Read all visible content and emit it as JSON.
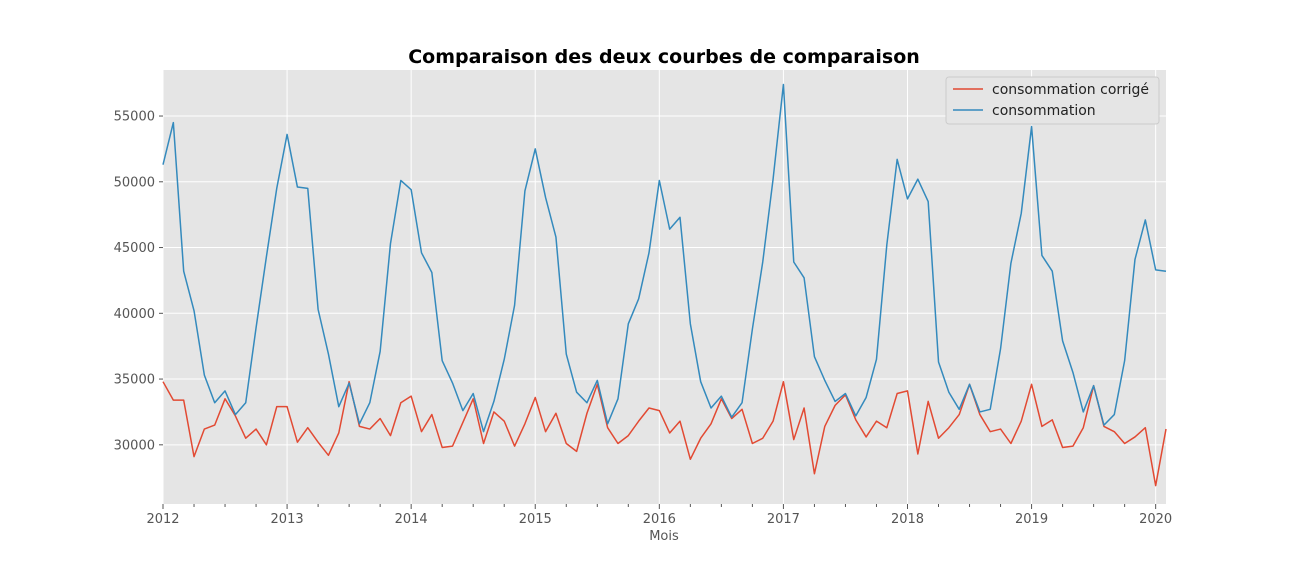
{
  "chart_data": {
    "type": "line",
    "title": "Comparaison des deux courbes de comparaison",
    "xlabel": "Mois",
    "ylabel": "",
    "x_start": "2012-01",
    "x_end": "2020-02",
    "xlim": [
      "2012-01",
      "2020-02"
    ],
    "ylim": [
      25500,
      58500
    ],
    "xticks": [
      "2012",
      "2013",
      "2014",
      "2015",
      "2016",
      "2017",
      "2018",
      "2019",
      "2020"
    ],
    "yticks": [
      30000,
      35000,
      40000,
      45000,
      50000,
      55000
    ],
    "grid": true,
    "legend_position": "top-right",
    "series": [
      {
        "name": "consommation corrigé",
        "color": "#e24a33",
        "values": [
          34800,
          33400,
          33400,
          29100,
          31200,
          31500,
          33500,
          32200,
          30500,
          31200,
          30000,
          32900,
          32900,
          30200,
          31300,
          30200,
          29200,
          30900,
          34800,
          31400,
          31200,
          32000,
          30700,
          33200,
          33700,
          31000,
          32300,
          29800,
          29900,
          31700,
          33500,
          30100,
          32500,
          31800,
          29900,
          31600,
          33600,
          31000,
          32400,
          30100,
          29500,
          32400,
          34600,
          31300,
          30100,
          30700,
          31800,
          32800,
          32600,
          30900,
          31800,
          28900,
          30500,
          31600,
          33500,
          32000,
          32700,
          30100,
          30500,
          31800,
          34800,
          30400,
          32800,
          27800,
          31400,
          33000,
          33800,
          31900,
          30600,
          31800,
          31300,
          33900,
          34100,
          29300,
          33300,
          30500,
          31300,
          32300,
          34600,
          32300,
          31000,
          31200,
          30100,
          31800,
          34600,
          31400,
          31900,
          29800,
          29900,
          31300,
          34500,
          31400,
          31000,
          30100,
          30600,
          31300,
          26900,
          31200
        ]
      },
      {
        "name": "consommation",
        "color": "#348abd",
        "values": [
          51300,
          54500,
          43200,
          40200,
          35300,
          33200,
          34100,
          32300,
          33200,
          38900,
          44300,
          49500,
          53600,
          49600,
          49500,
          40300,
          36900,
          32900,
          34700,
          31600,
          33200,
          37100,
          45300,
          50100,
          49400,
          44600,
          43100,
          36400,
          34700,
          32600,
          33900,
          31000,
          33300,
          36500,
          40600,
          49300,
          52500,
          48800,
          45800,
          36900,
          34000,
          33200,
          34900,
          31600,
          33500,
          39200,
          41100,
          44600,
          50100,
          46400,
          47300,
          39200,
          34800,
          32800,
          33700,
          32100,
          33200,
          38800,
          43900,
          50200,
          57400,
          43900,
          42700,
          36700,
          34900,
          33300,
          33900,
          32200,
          33600,
          36500,
          45200,
          51700,
          48700,
          50200,
          48500,
          36300,
          34000,
          32700,
          34600,
          32500,
          32700,
          37300,
          43800,
          47600,
          54200,
          44400,
          43200,
          37900,
          35500,
          32500,
          34500,
          31500,
          32300,
          36400,
          44100,
          47100,
          43300,
          43200
        ]
      }
    ]
  }
}
